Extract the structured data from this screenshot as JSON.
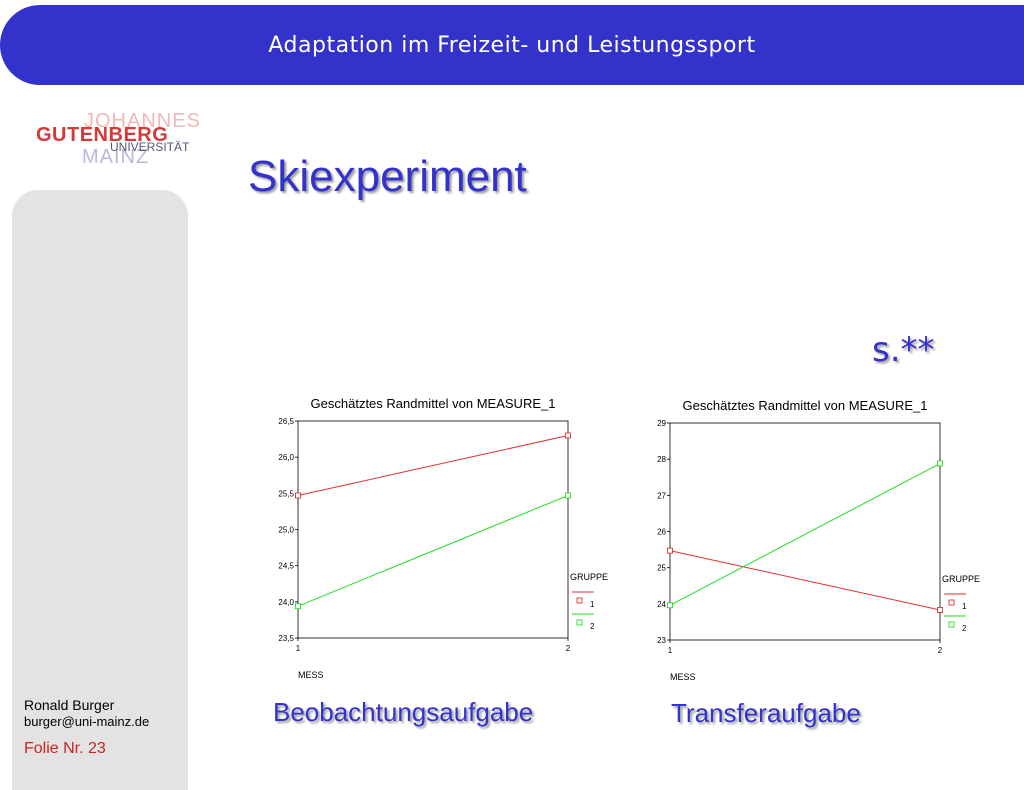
{
  "header": {
    "title": "Adaptation im Freizeit- und Leistungssport"
  },
  "logo": {
    "line1": "JOHANNES",
    "line2": "GUTENBERG",
    "line3": "UNIVERSITÄT",
    "line4": "MAINZ"
  },
  "slide": {
    "title": "Skiexperiment",
    "significance": "s.**"
  },
  "captions": [
    "Beobachtungsaufgabe",
    "Transferaufgabe"
  ],
  "footer": {
    "name": "Ronald Burger",
    "email": "burger@uni-mainz.de",
    "slide_number": "Folie Nr. 23"
  },
  "colors": {
    "accent": "#3333cc",
    "group1": "#e03030",
    "group2": "#22dd22"
  },
  "chart_data": [
    {
      "type": "line",
      "title": "Geschätztes Randmittel von MEASURE_1",
      "xlabel": "MESS",
      "ylabel": "",
      "x": [
        "1",
        "2"
      ],
      "ylim": [
        23.5,
        26.5
      ],
      "yticks": [
        "23,5",
        "24,0",
        "24,5",
        "25,0",
        "25,5",
        "26,0",
        "26,5"
      ],
      "legend_title": "GRUPPE",
      "legend_position": "right",
      "series": [
        {
          "name": "1",
          "color": "#e03030",
          "values": [
            25.47,
            26.3
          ]
        },
        {
          "name": "2",
          "color": "#22dd22",
          "values": [
            23.94,
            25.47
          ]
        }
      ]
    },
    {
      "type": "line",
      "title": "Geschätztes Randmittel von MEASURE_1",
      "xlabel": "MESS",
      "ylabel": "",
      "x": [
        "1",
        "2"
      ],
      "ylim": [
        23,
        29
      ],
      "yticks": [
        "23",
        "24",
        "25",
        "26",
        "27",
        "28",
        "29"
      ],
      "legend_title": "GRUPPE",
      "legend_position": "right",
      "series": [
        {
          "name": "1",
          "color": "#e03030",
          "values": [
            25.47,
            23.83
          ]
        },
        {
          "name": "2",
          "color": "#22dd22",
          "values": [
            23.96,
            27.88
          ]
        }
      ]
    }
  ]
}
